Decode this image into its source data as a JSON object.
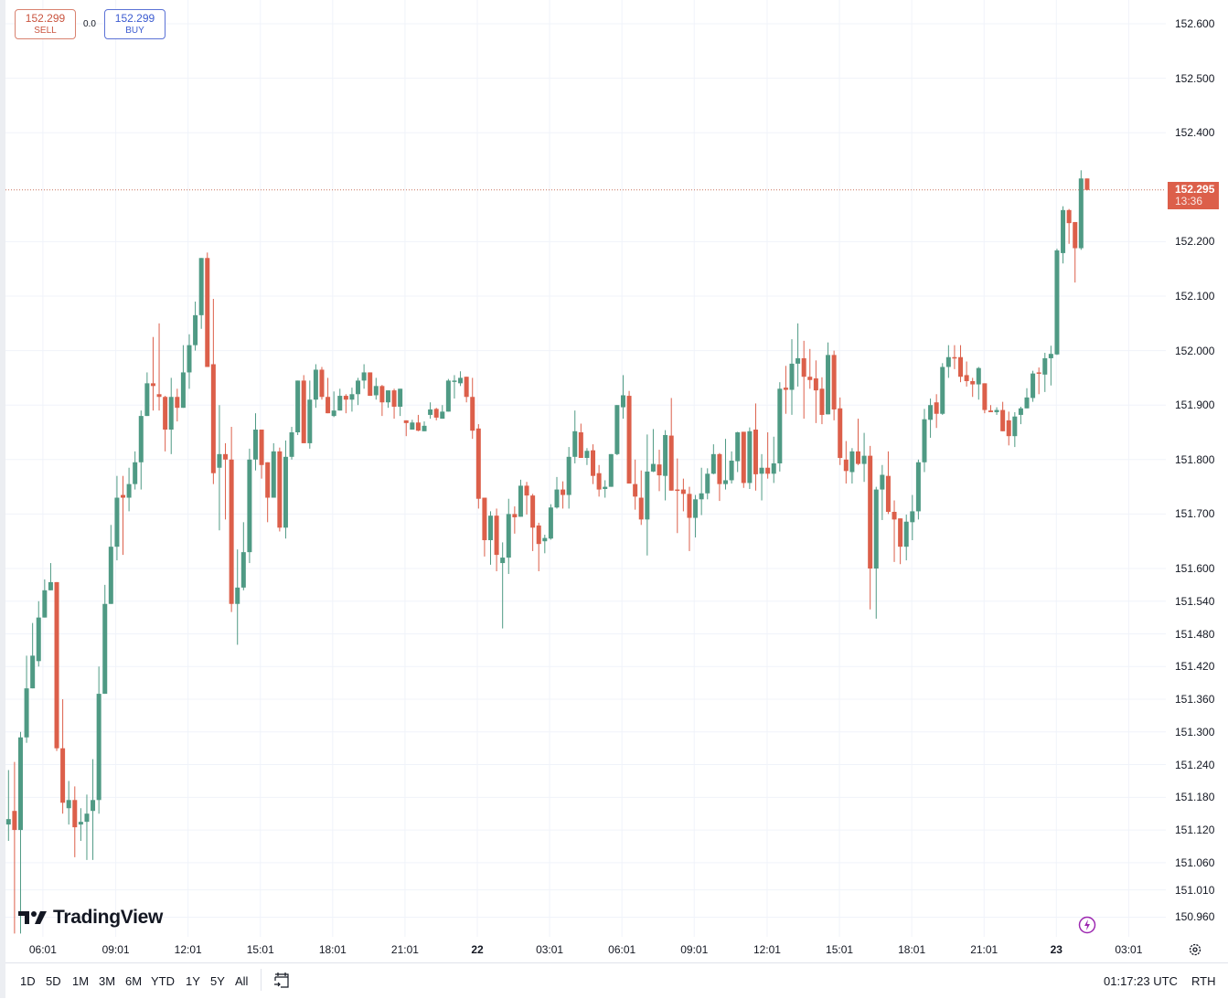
{
  "trade": {
    "sell_price": "152.299",
    "sell_label": "SELL",
    "spread": "0.0",
    "buy_price": "152.299",
    "buy_label": "BUY"
  },
  "last_price": {
    "value": "152.295",
    "countdown": "13:36"
  },
  "brand": {
    "logo_text": "TradingView"
  },
  "toolbar": {
    "ranges": [
      "1D",
      "5D",
      "1M",
      "3M",
      "6M",
      "YTD",
      "1Y",
      "5Y",
      "All"
    ],
    "clock": "01:17:23 UTC",
    "session": "RTH"
  },
  "colors": {
    "up": "#4f9a84",
    "down": "#dc5f4a",
    "grid": "#f0f3fa",
    "last_price_line": "#c8745f",
    "accent_bolt": "#9c27b0"
  },
  "icons": {
    "calendar": "calendar-goto-icon",
    "settings": "gear-icon",
    "bolt": "lightning-icon"
  },
  "chart_data": {
    "type": "candlestick",
    "interval": "15m",
    "grid": true,
    "y_ticks": [
      "152.600",
      "152.500",
      "152.400",
      "152.200",
      "152.100",
      "152.000",
      "151.900",
      "151.800",
      "151.700",
      "151.600",
      "151.540",
      "151.480",
      "151.420",
      "151.360",
      "151.300",
      "151.240",
      "151.180",
      "151.120",
      "151.060",
      "151.010",
      "150.960"
    ],
    "ylim": [
      150.947,
      152.644
    ],
    "x_ticks": [
      {
        "label": "06:01",
        "index": 5.7
      },
      {
        "label": "09:01",
        "index": 17.8
      },
      {
        "label": "12:01",
        "index": 29.8
      },
      {
        "label": "15:01",
        "index": 41.8
      },
      {
        "label": "18:01",
        "index": 53.8
      },
      {
        "label": "21:01",
        "index": 65.8
      },
      {
        "label": "22",
        "index": 77.8,
        "bold": true
      },
      {
        "label": "03:01",
        "index": 89.8
      },
      {
        "label": "06:01",
        "index": 101.8
      },
      {
        "label": "09:01",
        "index": 113.8
      },
      {
        "label": "12:01",
        "index": 125.9
      },
      {
        "label": "15:01",
        "index": 137.9
      },
      {
        "label": "18:01",
        "index": 149.9
      },
      {
        "label": "21:01",
        "index": 161.9
      },
      {
        "label": "23",
        "index": 173.9,
        "bold": true
      },
      {
        "label": "03:01",
        "index": 185.9
      }
    ],
    "last_price": 152.295,
    "ohlc": [
      [
        151.13,
        151.23,
        151.1,
        151.14
      ],
      [
        151.155,
        151.245,
        150.93,
        151.12
      ],
      [
        151.12,
        151.3,
        150.93,
        151.29
      ],
      [
        151.29,
        151.44,
        151.28,
        151.38
      ],
      [
        151.38,
        151.5,
        151.38,
        151.44
      ],
      [
        151.43,
        151.54,
        151.42,
        151.51
      ],
      [
        151.51,
        151.58,
        151.51,
        151.56
      ],
      [
        151.56,
        151.61,
        151.56,
        151.575
      ],
      [
        151.575,
        151.575,
        151.265,
        151.27
      ],
      [
        151.27,
        151.36,
        151.15,
        151.17
      ],
      [
        151.16,
        151.21,
        151.13,
        151.175
      ],
      [
        151.175,
        151.2,
        151.07,
        151.125
      ],
      [
        151.13,
        151.16,
        151.1,
        151.135
      ],
      [
        151.135,
        151.185,
        151.065,
        151.15
      ],
      [
        151.155,
        151.25,
        151.065,
        151.175
      ],
      [
        151.175,
        151.42,
        151.15,
        151.37
      ],
      [
        151.37,
        151.57,
        151.37,
        151.535
      ],
      [
        151.535,
        151.68,
        151.535,
        151.64
      ],
      [
        151.64,
        151.77,
        151.615,
        151.73
      ],
      [
        151.735,
        151.77,
        151.625,
        151.73
      ],
      [
        151.73,
        151.785,
        151.705,
        151.755
      ],
      [
        151.755,
        151.815,
        151.745,
        151.795
      ],
      [
        151.795,
        151.89,
        151.745,
        151.88
      ],
      [
        151.88,
        151.96,
        151.88,
        151.94
      ],
      [
        151.94,
        152.025,
        151.89,
        151.935
      ],
      [
        151.92,
        152.05,
        151.89,
        151.915
      ],
      [
        151.915,
        151.917,
        151.815,
        151.855
      ],
      [
        151.855,
        151.95,
        151.81,
        151.915
      ],
      [
        151.915,
        151.93,
        151.87,
        151.895
      ],
      [
        151.895,
        152.01,
        151.895,
        151.96
      ],
      [
        151.96,
        152.03,
        151.93,
        152.01
      ],
      [
        152.01,
        152.09,
        152.0,
        152.065
      ],
      [
        152.065,
        152.17,
        152.04,
        152.17
      ],
      [
        152.17,
        152.18,
        151.97,
        151.97
      ],
      [
        151.975,
        152.095,
        151.755,
        151.775
      ],
      [
        151.785,
        151.9,
        151.67,
        151.81
      ],
      [
        151.81,
        151.83,
        151.69,
        151.8
      ],
      [
        151.8,
        151.86,
        151.52,
        151.535
      ],
      [
        151.535,
        151.635,
        151.46,
        151.565
      ],
      [
        151.565,
        151.685,
        151.56,
        151.63
      ],
      [
        151.63,
        151.82,
        151.61,
        151.8
      ],
      [
        151.8,
        151.885,
        151.78,
        151.855
      ],
      [
        151.855,
        151.855,
        151.765,
        151.79
      ],
      [
        151.795,
        151.795,
        151.685,
        151.73
      ],
      [
        151.73,
        151.83,
        151.73,
        151.815
      ],
      [
        151.815,
        151.822,
        151.668,
        151.675
      ],
      [
        151.675,
        151.835,
        151.655,
        151.805
      ],
      [
        151.805,
        151.86,
        151.8,
        151.85
      ],
      [
        151.85,
        151.945,
        151.845,
        151.945
      ],
      [
        151.945,
        151.955,
        151.83,
        151.83
      ],
      [
        151.83,
        151.945,
        151.82,
        151.91
      ],
      [
        151.91,
        151.975,
        151.895,
        151.965
      ],
      [
        151.965,
        151.97,
        151.91,
        151.915
      ],
      [
        151.915,
        151.95,
        151.885,
        151.885
      ],
      [
        151.88,
        151.925,
        151.878,
        151.89
      ],
      [
        151.89,
        151.93,
        151.89,
        151.917
      ],
      [
        151.917,
        151.92,
        151.885,
        151.91
      ],
      [
        151.91,
        151.932,
        151.888,
        151.92
      ],
      [
        151.92,
        151.95,
        151.9,
        151.945
      ],
      [
        151.945,
        151.975,
        151.93,
        151.96
      ],
      [
        151.96,
        151.96,
        151.917,
        151.917
      ],
      [
        151.918,
        151.95,
        151.91,
        151.935
      ],
      [
        151.935,
        151.937,
        151.88,
        151.905
      ],
      [
        151.905,
        151.927,
        151.895,
        151.927
      ],
      [
        151.927,
        151.93,
        151.875,
        151.897
      ],
      [
        151.897,
        151.93,
        151.88,
        151.93
      ],
      [
        151.872,
        151.872,
        151.843,
        151.867
      ],
      [
        151.855,
        151.873,
        151.855,
        151.868
      ],
      [
        151.868,
        151.882,
        151.852,
        151.853
      ],
      [
        151.852,
        151.87,
        151.852,
        151.862
      ],
      [
        151.882,
        151.905,
        151.875,
        151.892
      ],
      [
        151.893,
        151.895,
        151.872,
        151.877
      ],
      [
        151.875,
        151.9,
        151.875,
        151.888
      ],
      [
        151.888,
        151.948,
        151.888,
        151.945
      ],
      [
        151.944,
        151.955,
        151.912,
        151.945
      ],
      [
        151.94,
        151.962,
        151.935,
        151.95
      ],
      [
        151.952,
        151.952,
        151.905,
        151.915
      ],
      [
        151.915,
        151.95,
        151.838,
        151.853
      ],
      [
        151.857,
        151.865,
        151.71,
        151.728
      ],
      [
        151.73,
        151.73,
        151.622,
        151.652
      ],
      [
        151.652,
        151.705,
        151.607,
        151.697
      ],
      [
        151.697,
        151.71,
        151.595,
        151.625
      ],
      [
        151.61,
        151.648,
        151.49,
        151.62
      ],
      [
        151.62,
        151.728,
        151.59,
        151.7
      ],
      [
        151.7,
        151.714,
        151.664,
        151.694
      ],
      [
        151.695,
        151.763,
        151.695,
        151.752
      ],
      [
        151.752,
        151.759,
        151.699,
        151.734
      ],
      [
        151.734,
        151.737,
        151.632,
        151.675
      ],
      [
        151.679,
        151.684,
        151.595,
        151.645
      ],
      [
        151.65,
        151.662,
        151.628,
        151.656
      ],
      [
        151.655,
        151.718,
        151.653,
        151.712
      ],
      [
        151.712,
        151.768,
        151.71,
        151.745
      ],
      [
        151.745,
        151.76,
        151.71,
        151.735
      ],
      [
        151.735,
        151.823,
        151.71,
        151.805
      ],
      [
        151.805,
        151.89,
        151.793,
        151.852
      ],
      [
        151.85,
        151.866,
        151.803,
        151.803
      ],
      [
        151.803,
        151.821,
        151.79,
        151.816
      ],
      [
        151.817,
        151.828,
        151.755,
        151.77
      ],
      [
        151.775,
        151.79,
        151.732,
        151.745
      ],
      [
        151.746,
        151.762,
        151.73,
        151.75
      ],
      [
        151.75,
        151.81,
        151.75,
        151.81
      ],
      [
        151.81,
        151.9,
        151.808,
        151.9
      ],
      [
        151.896,
        151.955,
        151.875,
        151.918
      ],
      [
        151.917,
        151.926,
        151.756,
        151.756
      ],
      [
        151.755,
        151.8,
        151.708,
        151.732
      ],
      [
        151.73,
        151.78,
        151.68,
        151.69
      ],
      [
        151.69,
        151.846,
        151.624,
        151.778
      ],
      [
        151.778,
        151.856,
        151.777,
        151.792
      ],
      [
        151.791,
        151.818,
        151.742,
        151.771
      ],
      [
        151.77,
        151.854,
        151.725,
        151.845
      ],
      [
        151.844,
        151.913,
        151.743,
        151.743
      ],
      [
        151.745,
        151.802,
        151.665,
        151.743
      ],
      [
        151.745,
        151.765,
        151.705,
        151.737
      ],
      [
        151.737,
        151.75,
        151.632,
        151.693
      ],
      [
        151.693,
        151.735,
        151.657,
        151.727
      ],
      [
        151.727,
        151.785,
        151.698,
        151.738
      ],
      [
        151.738,
        151.784,
        151.727,
        151.774
      ],
      [
        151.774,
        151.828,
        151.773,
        151.81
      ],
      [
        151.81,
        151.812,
        151.724,
        151.755
      ],
      [
        151.755,
        151.838,
        151.745,
        151.762
      ],
      [
        151.762,
        151.815,
        151.756,
        151.798
      ],
      [
        151.797,
        151.851,
        151.777,
        151.85
      ],
      [
        151.851,
        151.851,
        151.748,
        151.757
      ],
      [
        151.757,
        151.859,
        151.746,
        151.852
      ],
      [
        151.855,
        151.903,
        151.743,
        151.773
      ],
      [
        151.774,
        151.81,
        151.725,
        151.785
      ],
      [
        151.785,
        151.85,
        151.765,
        151.774
      ],
      [
        151.774,
        151.842,
        151.757,
        151.793
      ],
      [
        151.793,
        151.942,
        151.778,
        151.93
      ],
      [
        151.932,
        151.972,
        151.884,
        151.928
      ],
      [
        151.928,
        152.021,
        151.882,
        151.976
      ],
      [
        151.976,
        152.05,
        151.934,
        151.986
      ],
      [
        151.986,
        152.018,
        151.875,
        151.952
      ],
      [
        151.952,
        152.003,
        151.93,
        151.946
      ],
      [
        151.949,
        151.982,
        151.867,
        151.927
      ],
      [
        151.93,
        151.951,
        151.865,
        151.882
      ],
      [
        151.883,
        152.015,
        151.883,
        151.992
      ],
      [
        151.992,
        152.0,
        151.872,
        151.892
      ],
      [
        151.894,
        151.914,
        151.79,
        151.803
      ],
      [
        151.8,
        151.834,
        151.756,
        151.779
      ],
      [
        151.777,
        151.821,
        151.756,
        151.815
      ],
      [
        151.815,
        151.875,
        151.79,
        151.792
      ],
      [
        151.792,
        151.849,
        151.759,
        151.807
      ],
      [
        151.807,
        151.825,
        151.525,
        151.6
      ],
      [
        151.6,
        151.75,
        151.508,
        151.745
      ],
      [
        151.745,
        151.79,
        151.689,
        151.772
      ],
      [
        151.77,
        151.815,
        151.7,
        151.704
      ],
      [
        151.704,
        151.725,
        151.612,
        151.69
      ],
      [
        151.692,
        151.692,
        151.608,
        151.64
      ],
      [
        151.64,
        151.699,
        151.615,
        151.686
      ],
      [
        151.685,
        151.735,
        151.652,
        151.705
      ],
      [
        151.705,
        151.8,
        151.69,
        151.795
      ],
      [
        151.795,
        151.893,
        151.777,
        151.874
      ],
      [
        151.873,
        151.912,
        151.84,
        151.9
      ],
      [
        151.905,
        151.92,
        151.858,
        151.884
      ],
      [
        151.884,
        151.977,
        151.882,
        151.97
      ],
      [
        151.97,
        152.01,
        151.95,
        151.988
      ],
      [
        151.988,
        152.01,
        151.966,
        151.986
      ],
      [
        151.988,
        152.01,
        151.942,
        151.952
      ],
      [
        151.955,
        151.98,
        151.934,
        151.944
      ],
      [
        151.944,
        151.95,
        151.915,
        151.938
      ],
      [
        151.938,
        151.97,
        151.91,
        151.968
      ],
      [
        151.94,
        151.94,
        151.885,
        151.891
      ],
      [
        151.89,
        151.9,
        151.887,
        151.887
      ],
      [
        151.887,
        151.896,
        151.882,
        151.891
      ],
      [
        151.891,
        151.906,
        151.852,
        151.852
      ],
      [
        151.872,
        151.888,
        151.826,
        151.843
      ],
      [
        151.843,
        151.887,
        151.823,
        151.879
      ],
      [
        151.882,
        151.897,
        151.865,
        151.894
      ],
      [
        151.894,
        151.931,
        151.894,
        151.914
      ],
      [
        151.913,
        151.963,
        151.906,
        151.958
      ],
      [
        151.96,
        151.969,
        151.92,
        151.958
      ],
      [
        151.956,
        151.996,
        151.924,
        151.986
      ],
      [
        151.986,
        152.009,
        151.936,
        151.994
      ],
      [
        151.993,
        152.187,
        151.992,
        152.184
      ],
      [
        152.179,
        152.265,
        152.16,
        152.258
      ],
      [
        152.258,
        152.26,
        152.196,
        152.234
      ],
      [
        152.236,
        152.236,
        152.125,
        152.188
      ],
      [
        152.188,
        152.331,
        152.185,
        152.316
      ],
      [
        152.316,
        152.316,
        152.294,
        152.295
      ]
    ]
  }
}
